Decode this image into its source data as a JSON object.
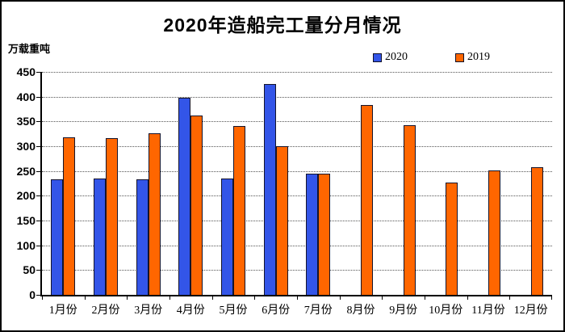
{
  "title": "2020年造船完工量分月情况",
  "y_unit_label": "万载重吨",
  "legend": [
    {
      "label": "2020",
      "color": "#3355e8"
    },
    {
      "label": "2019",
      "color": "#ff6600"
    }
  ],
  "chart_data": {
    "type": "bar",
    "title": "2020年造船完工量分月情况",
    "ylabel": "万载重吨",
    "xlabel": "",
    "categories": [
      "1月份",
      "2月份",
      "3月份",
      "4月份",
      "5月份",
      "6月份",
      "7月份",
      "8月份",
      "9月份",
      "10月份",
      "11月份",
      "12月份"
    ],
    "series": [
      {
        "name": "2020",
        "color": "#3355e8",
        "values": [
          233,
          235,
          233,
          398,
          235,
          425,
          245,
          null,
          null,
          null,
          null,
          null
        ]
      },
      {
        "name": "2019",
        "color": "#ff6600",
        "values": [
          318,
          317,
          326,
          362,
          341,
          300,
          244,
          383,
          343,
          227,
          251,
          258
        ]
      }
    ],
    "ylim": [
      0,
      450
    ],
    "ytick_step": 50,
    "yticks": [
      0,
      50,
      100,
      150,
      200,
      250,
      300,
      350,
      400,
      450
    ],
    "grid": true,
    "gridline_style": "dotted",
    "legend_position": "top-right"
  }
}
